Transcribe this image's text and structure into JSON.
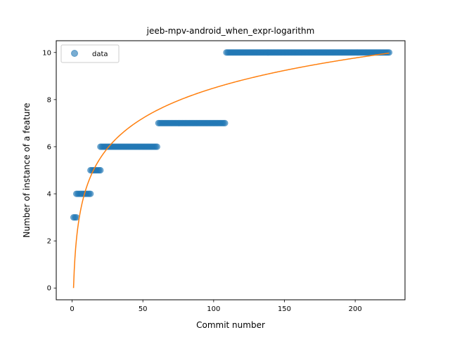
{
  "chart_data": {
    "type": "scatter",
    "title": "jeeb-mpv-android_when_expr-logarithm",
    "xlabel": "Commit number",
    "ylabel": "Number of instance of a feature",
    "xlim": [
      -11.2,
      235.2
    ],
    "ylim": [
      -0.5,
      10.5
    ],
    "xticks": [
      0,
      50,
      100,
      150,
      200
    ],
    "yticks": [
      0,
      2,
      4,
      6,
      8,
      10
    ],
    "legend": {
      "position": "top-left",
      "entries": [
        "data"
      ]
    },
    "grid": false,
    "colors": {
      "points": "#1f77b4",
      "fit": "#ff7f0e"
    },
    "series": [
      {
        "name": "data",
        "kind": "points",
        "segments": [
          {
            "x_start": 1,
            "x_end": 3,
            "y": 3
          },
          {
            "x_start": 3,
            "x_end": 13,
            "y": 4
          },
          {
            "x_start": 13,
            "x_end": 20,
            "y": 5
          },
          {
            "x_start": 20,
            "x_end": 60,
            "y": 6
          },
          {
            "x_start": 61,
            "x_end": 108,
            "y": 7
          },
          {
            "x_start": 109,
            "x_end": 224,
            "y": 10
          }
        ]
      },
      {
        "kind": "line",
        "model": "logarithmic",
        "a": 0,
        "b": 1.8433,
        "x_start": 1,
        "x_end": 224
      }
    ]
  }
}
